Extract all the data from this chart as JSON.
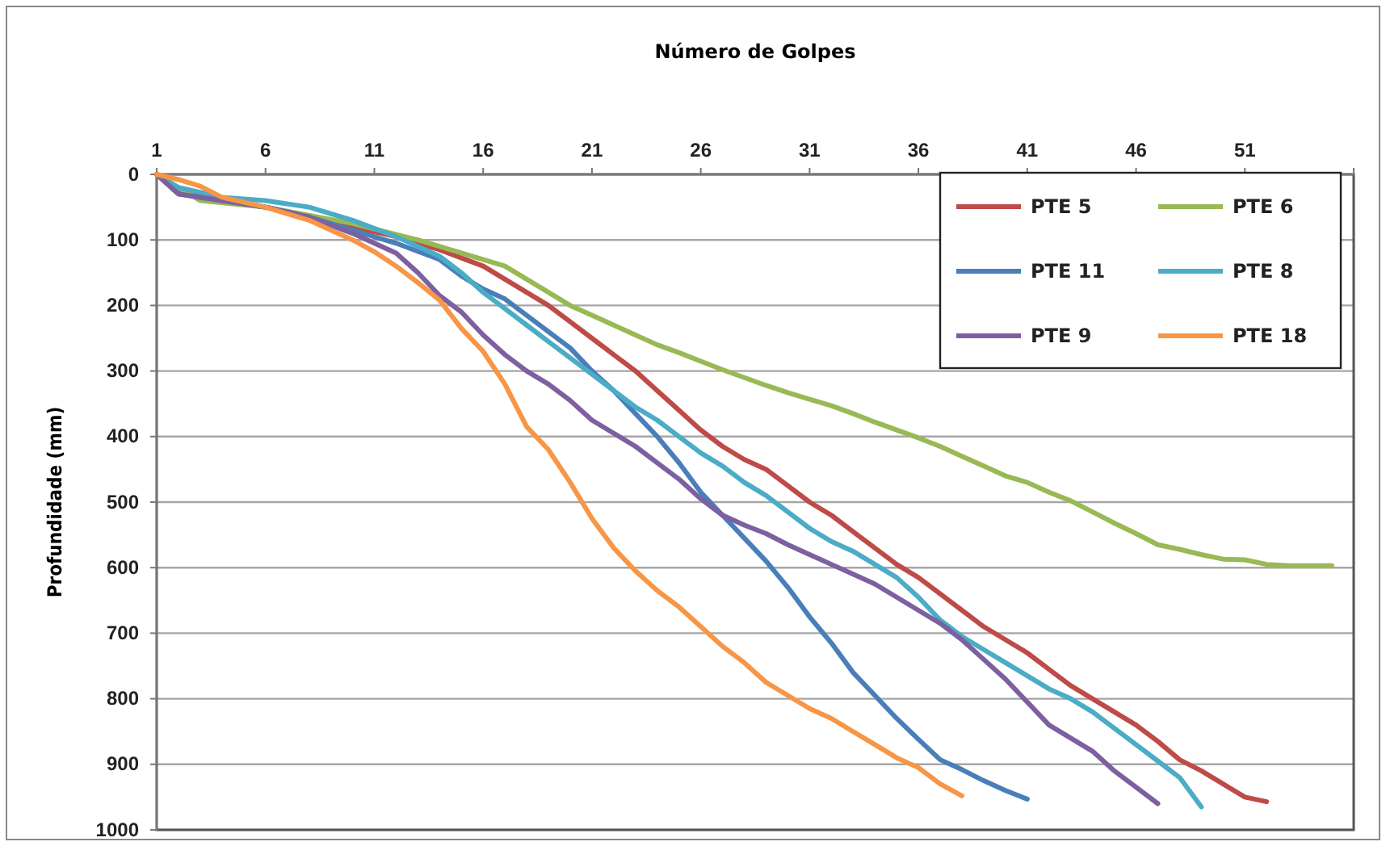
{
  "chart_data": {
    "type": "line",
    "title": "Número de Golpes",
    "ylabel": "Profundidade (mm)",
    "xlim": [
      1,
      56
    ],
    "xticks": [
      1,
      6,
      11,
      16,
      21,
      26,
      31,
      36,
      41,
      46,
      51
    ],
    "ylim": [
      1000,
      0
    ],
    "yticks": [
      0,
      100,
      200,
      300,
      400,
      500,
      600,
      700,
      800,
      900,
      1000
    ],
    "grid": "y",
    "legend": "top right",
    "marker": "none",
    "line_style": "solid",
    "series": [
      {
        "name": "PTE 5",
        "color": "#be4b48",
        "x": [
          1,
          2,
          4,
          6,
          8,
          10,
          12,
          14,
          16,
          17,
          18,
          19,
          20,
          21,
          22,
          23,
          24,
          25,
          26,
          27,
          28,
          29,
          30,
          31,
          32,
          33,
          34,
          35,
          36,
          37,
          38,
          39,
          40,
          41,
          42,
          43,
          44,
          45,
          46,
          47,
          48,
          49,
          50,
          51,
          52
        ],
        "values": [
          0,
          25,
          40,
          50,
          65,
          80,
          95,
          115,
          140,
          160,
          180,
          200,
          225,
          250,
          275,
          300,
          330,
          360,
          390,
          415,
          435,
          450,
          475,
          500,
          520,
          545,
          570,
          595,
          615,
          640,
          665,
          690,
          710,
          730,
          755,
          780,
          800,
          820,
          840,
          865,
          893,
          910,
          930,
          950,
          957
        ]
      },
      {
        "name": "PTE 6",
        "color": "#98b954",
        "x": [
          1,
          3,
          6,
          10,
          13,
          15,
          17,
          19,
          20,
          21,
          22,
          23,
          24,
          25,
          26,
          27,
          28,
          29,
          30,
          31,
          32,
          33,
          34,
          35,
          36,
          37,
          38,
          39,
          40,
          41,
          42,
          43,
          44,
          45,
          46,
          47,
          48,
          49,
          50,
          51,
          52,
          53,
          54,
          55
        ],
        "values": [
          0,
          40,
          50,
          75,
          100,
          120,
          140,
          180,
          200,
          215,
          230,
          245,
          260,
          272,
          285,
          298,
          310,
          322,
          333,
          343,
          353,
          365,
          378,
          390,
          402,
          415,
          430,
          445,
          460,
          470,
          485,
          498,
          515,
          532,
          548,
          565,
          572,
          580,
          587,
          588,
          595,
          597,
          597,
          597
        ]
      },
      {
        "name": "PTE 11",
        "color": "#4a7ebb",
        "x": [
          1,
          2,
          4,
          6,
          8,
          10,
          12,
          14,
          15,
          16,
          17,
          18,
          19,
          20,
          21,
          22,
          23,
          24,
          25,
          26,
          27,
          28,
          29,
          30,
          31,
          32,
          33,
          34,
          35,
          36,
          37,
          38,
          39,
          40,
          41
        ],
        "values": [
          0,
          30,
          40,
          50,
          65,
          85,
          105,
          130,
          155,
          175,
          190,
          215,
          240,
          265,
          300,
          330,
          365,
          400,
          440,
          485,
          520,
          555,
          590,
          630,
          675,
          715,
          760,
          795,
          830,
          862,
          893,
          908,
          925,
          940,
          953
        ]
      },
      {
        "name": "PTE 8",
        "color": "#4bacc6",
        "x": [
          1,
          2,
          4,
          6,
          8,
          10,
          12,
          14,
          15,
          16,
          17,
          18,
          19,
          20,
          21,
          22,
          23,
          24,
          25,
          26,
          27,
          28,
          29,
          30,
          31,
          32,
          33,
          34,
          35,
          36,
          37,
          38,
          39,
          40,
          41,
          42,
          43,
          44,
          45,
          46,
          47,
          48,
          49
        ],
        "values": [
          0,
          20,
          35,
          40,
          50,
          70,
          95,
          125,
          150,
          180,
          205,
          230,
          255,
          280,
          305,
          330,
          355,
          375,
          400,
          425,
          445,
          470,
          490,
          515,
          540,
          560,
          575,
          595,
          615,
          645,
          680,
          705,
          725,
          745,
          765,
          785,
          800,
          820,
          845,
          870,
          895,
          920,
          965
        ]
      },
      {
        "name": "PTE 9",
        "color": "#7d60a0",
        "x": [
          1,
          2,
          4,
          6,
          8,
          10,
          12,
          13,
          14,
          15,
          16,
          17,
          18,
          19,
          20,
          21,
          22,
          23,
          24,
          25,
          26,
          27,
          28,
          29,
          30,
          31,
          32,
          33,
          34,
          35,
          36,
          37,
          38,
          39,
          40,
          41,
          42,
          43,
          44,
          45,
          46,
          47
        ],
        "values": [
          0,
          30,
          40,
          50,
          65,
          90,
          120,
          150,
          185,
          210,
          245,
          275,
          300,
          320,
          345,
          375,
          395,
          415,
          440,
          465,
          495,
          520,
          535,
          548,
          565,
          580,
          595,
          610,
          625,
          645,
          665,
          685,
          710,
          740,
          770,
          805,
          840,
          860,
          880,
          910,
          935,
          960
        ]
      },
      {
        "name": "PTE 18",
        "color": "#f79646",
        "x": [
          1,
          2,
          3,
          4,
          6,
          8,
          10,
          11,
          12,
          13,
          14,
          15,
          16,
          17,
          18,
          19,
          20,
          21,
          22,
          23,
          24,
          25,
          26,
          27,
          28,
          29,
          30,
          31,
          32,
          33,
          34,
          35,
          36,
          37,
          38
        ],
        "values": [
          0,
          8,
          18,
          35,
          50,
          70,
          100,
          118,
          140,
          165,
          192,
          235,
          270,
          320,
          385,
          420,
          470,
          525,
          570,
          605,
          635,
          660,
          690,
          720,
          745,
          775,
          795,
          815,
          830,
          850,
          870,
          890,
          905,
          930,
          948
        ]
      }
    ]
  }
}
